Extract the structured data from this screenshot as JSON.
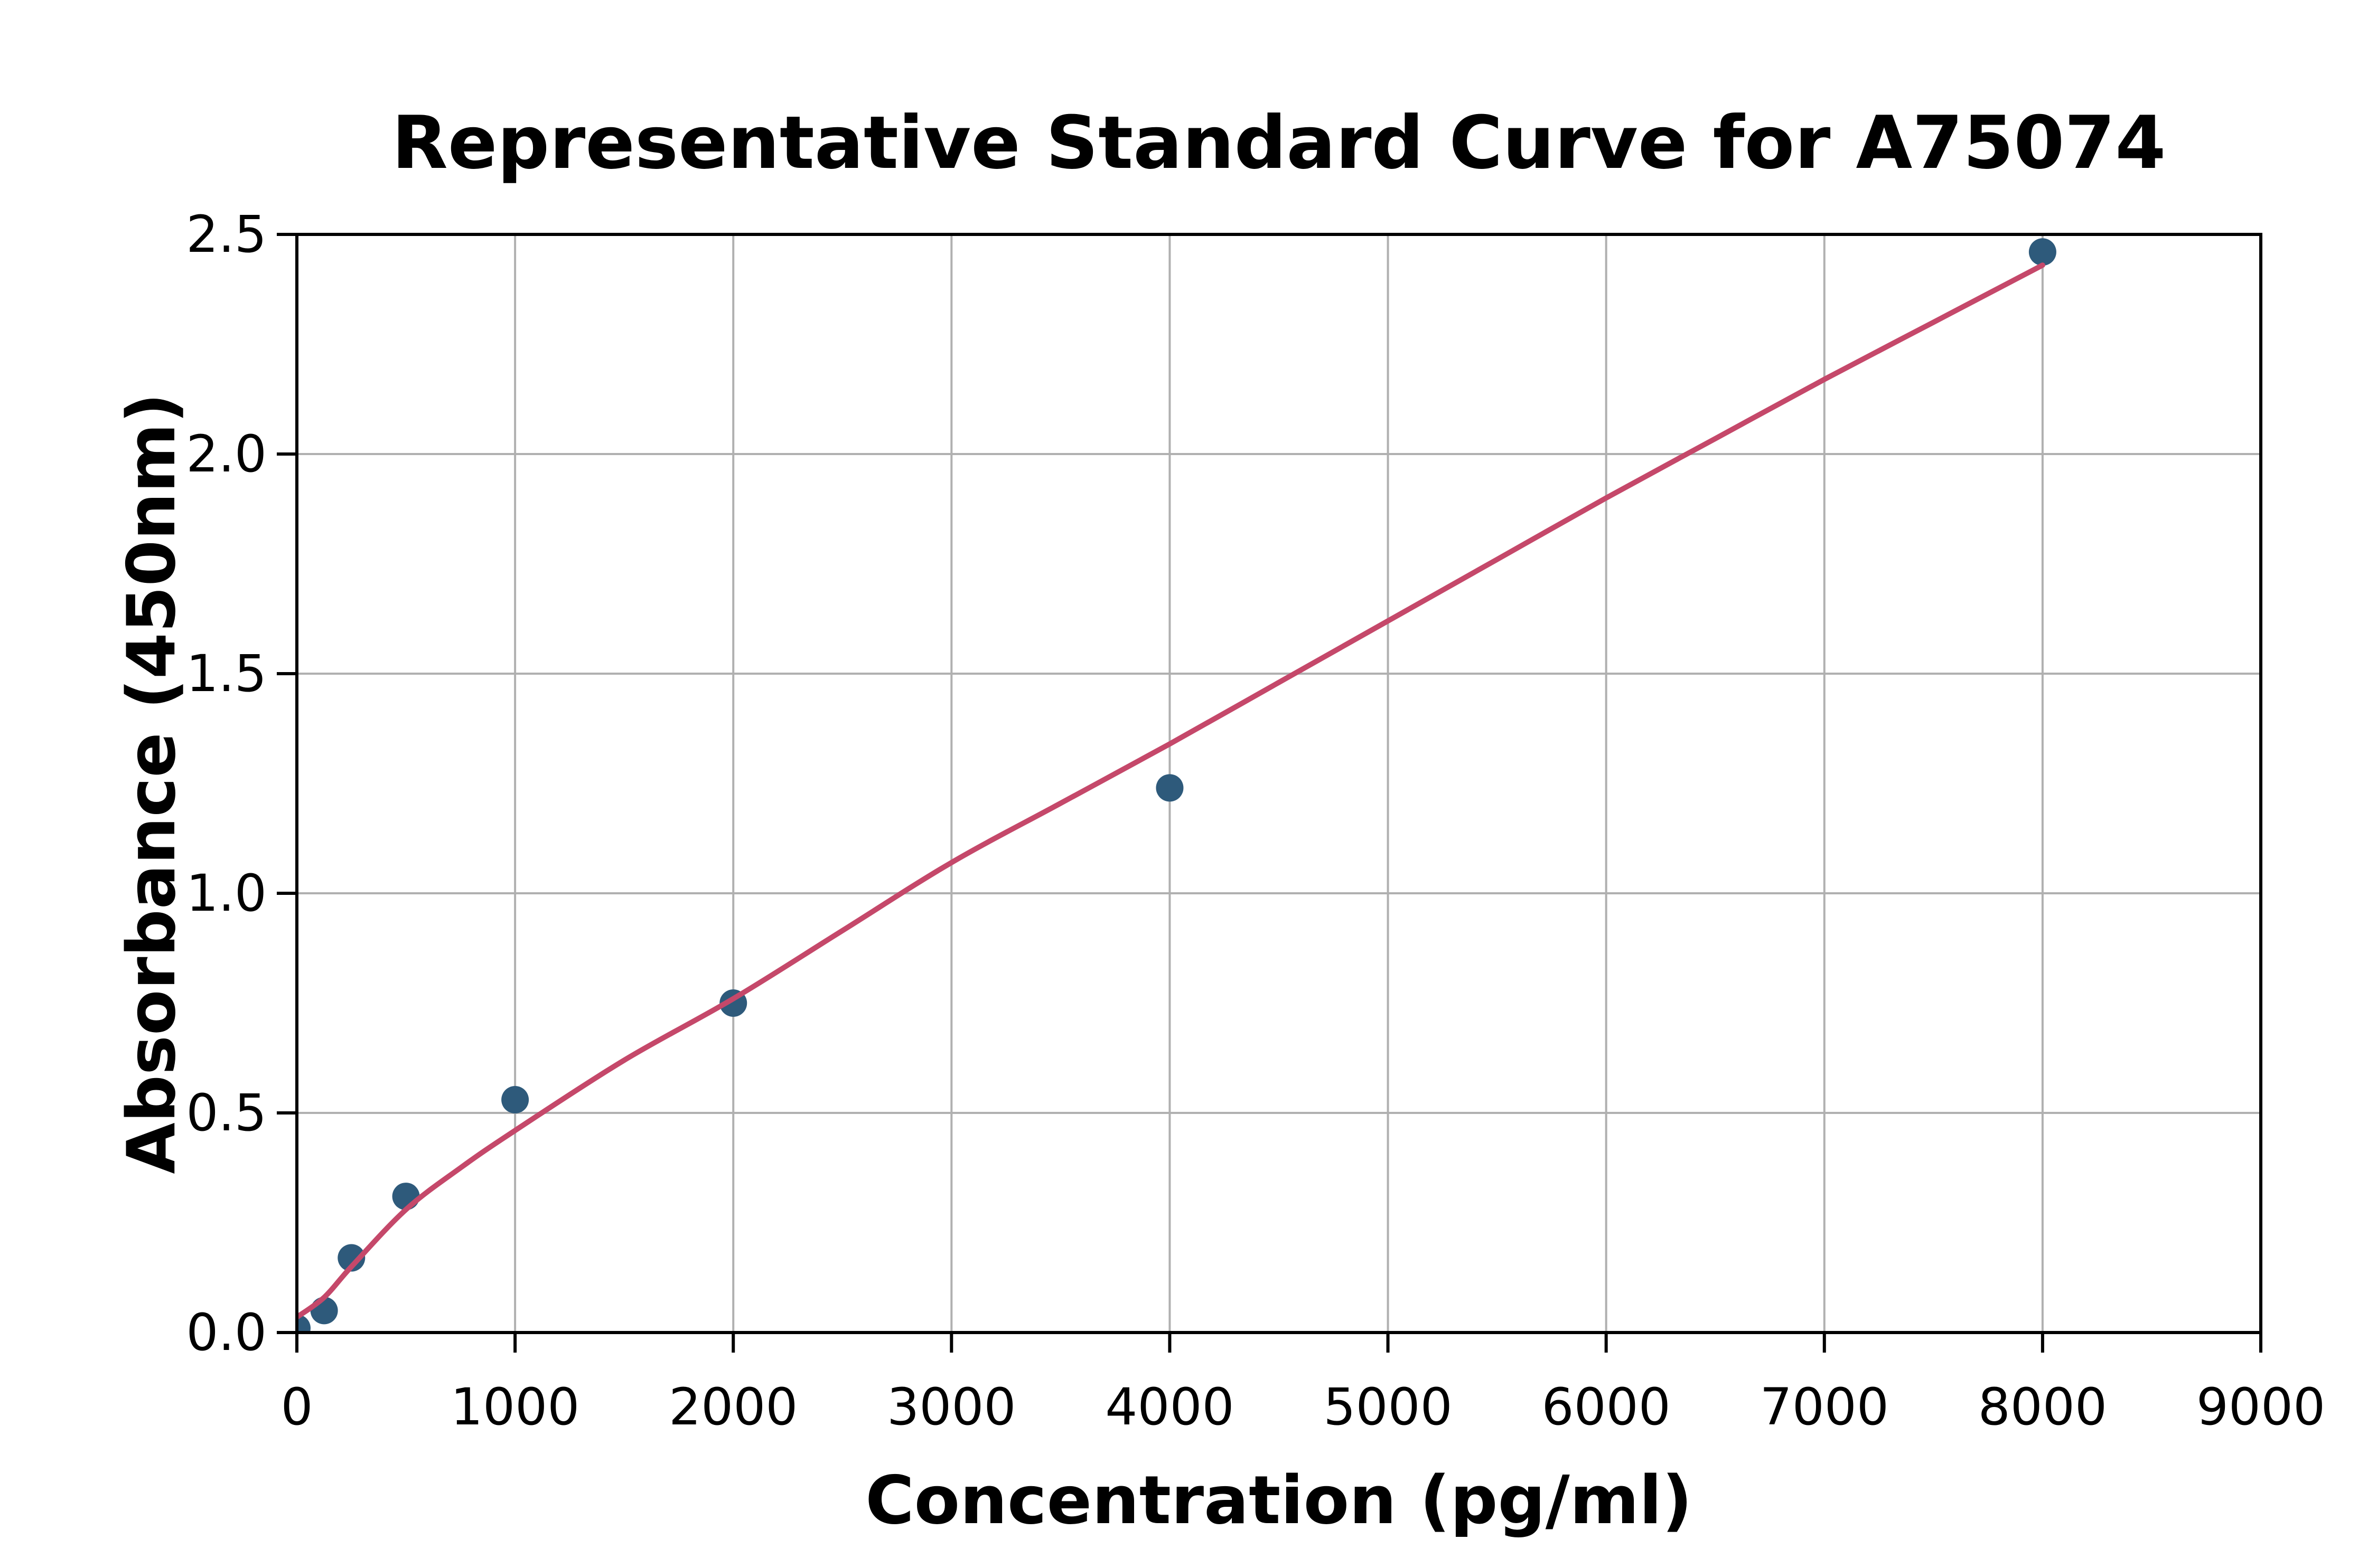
{
  "chart_data": {
    "type": "scatter",
    "title": "Representative Standard Curve for A75074",
    "xlabel": "Concentration (pg/ml)",
    "ylabel": "Absorbance (450nm)",
    "xlim": [
      0,
      9000
    ],
    "ylim": [
      0,
      2.5
    ],
    "x_ticks": [
      0,
      1000,
      2000,
      3000,
      4000,
      5000,
      6000,
      7000,
      8000,
      9000
    ],
    "x_tick_labels": [
      "0",
      "1000",
      "2000",
      "3000",
      "4000",
      "5000",
      "6000",
      "7000",
      "8000",
      "9000"
    ],
    "y_ticks": [
      0.0,
      0.5,
      1.0,
      1.5,
      2.0,
      2.5
    ],
    "y_tick_labels": [
      "0.0",
      "0.5",
      "1.0",
      "1.5",
      "2.0",
      "2.5"
    ],
    "grid": true,
    "legend_position": "none",
    "series": [
      {
        "name": "standard-points",
        "kind": "scatter",
        "color": "#2e5a7b",
        "points": [
          [
            0,
            0.01
          ],
          [
            125,
            0.05
          ],
          [
            250,
            0.17
          ],
          [
            500,
            0.31
          ],
          [
            1000,
            0.53
          ],
          [
            2000,
            0.75
          ],
          [
            4000,
            1.24
          ],
          [
            8000,
            2.46
          ]
        ]
      },
      {
        "name": "fitted-curve",
        "kind": "line",
        "color": "#c5486a",
        "points": [
          [
            0,
            0.035
          ],
          [
            125,
            0.08
          ],
          [
            250,
            0.15
          ],
          [
            500,
            0.28
          ],
          [
            750,
            0.375
          ],
          [
            1000,
            0.46
          ],
          [
            1500,
            0.62
          ],
          [
            2000,
            0.76
          ],
          [
            2500,
            0.915
          ],
          [
            3000,
            1.07
          ],
          [
            3500,
            1.205
          ],
          [
            4000,
            1.34
          ],
          [
            4500,
            1.48
          ],
          [
            5000,
            1.62
          ],
          [
            5500,
            1.76
          ],
          [
            6000,
            1.9
          ],
          [
            6500,
            2.035
          ],
          [
            7000,
            2.17
          ],
          [
            7500,
            2.3
          ],
          [
            8000,
            2.43
          ]
        ]
      }
    ]
  },
  "colors": {
    "background": "#ffffff",
    "grid": "#b0b0b0",
    "spine": "#000000",
    "text": "#000000",
    "marker": "#2e5a7b",
    "curve": "#c5486a"
  }
}
